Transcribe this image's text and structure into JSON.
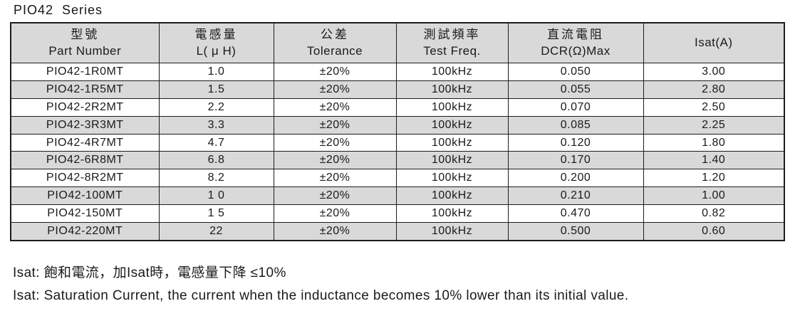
{
  "page": {
    "title": "PIO42  Series"
  },
  "table": {
    "columns": [
      {
        "key": "part-number",
        "zh": "型號",
        "en": "Part Number"
      },
      {
        "key": "inductance",
        "zh": "電感量",
        "en": "L( μ H)"
      },
      {
        "key": "tolerance",
        "zh": "公差",
        "en": "Tolerance"
      },
      {
        "key": "test-freq",
        "zh": "測試頻率",
        "en": "Test Freq."
      },
      {
        "key": "dcr",
        "zh": "直流電阻",
        "en": "DCR(Ω)Max"
      },
      {
        "key": "isat",
        "zh": "",
        "en": "Isat(A)"
      }
    ],
    "rows": [
      [
        "PIO42-1R0MT",
        "1.0",
        "±20%",
        "100kHz",
        "0.050",
        "3.00"
      ],
      [
        "PIO42-1R5MT",
        "1.5",
        "±20%",
        "100kHz",
        "0.055",
        "2.80"
      ],
      [
        "PIO42-2R2MT",
        "2.2",
        "±20%",
        "100kHz",
        "0.070",
        "2.50"
      ],
      [
        "PIO42-3R3MT",
        "3.3",
        "±20%",
        "100kHz",
        "0.085",
        "2.25"
      ],
      [
        "PIO42-4R7MT",
        "4.7",
        "±20%",
        "100kHz",
        "0.120",
        "1.80"
      ],
      [
        "PIO42-6R8MT",
        "6.8",
        "±20%",
        "100kHz",
        "0.170",
        "1.40"
      ],
      [
        "PIO42-8R2MT",
        "8.2",
        "±20%",
        "100kHz",
        "0.200",
        "1.20"
      ],
      [
        "PIO42-100MT",
        "1 0",
        "±20%",
        "100kHz",
        "0.210",
        "1.00"
      ],
      [
        "PIO42-150MT",
        "1 5",
        "±20%",
        "100kHz",
        "0.470",
        "0.82"
      ],
      [
        "PIO42-220MT",
        "22",
        "±20%",
        "100kHz",
        "0.500",
        "0.60"
      ]
    ]
  },
  "notes": {
    "zh": "Isat: 飽和電流，加Isat時，電感量下降 ≤10%",
    "en": "Isat: Saturation Current, the current when the inductance becomes 10% lower than its initial value."
  },
  "colors": {
    "header_bg": "#d9d9d9",
    "stripe_bg": "#d9d9d9",
    "row_bg": "#ffffff",
    "border": "#1c1c1c",
    "text": "#1a1a1a",
    "background": "#ffffff"
  }
}
